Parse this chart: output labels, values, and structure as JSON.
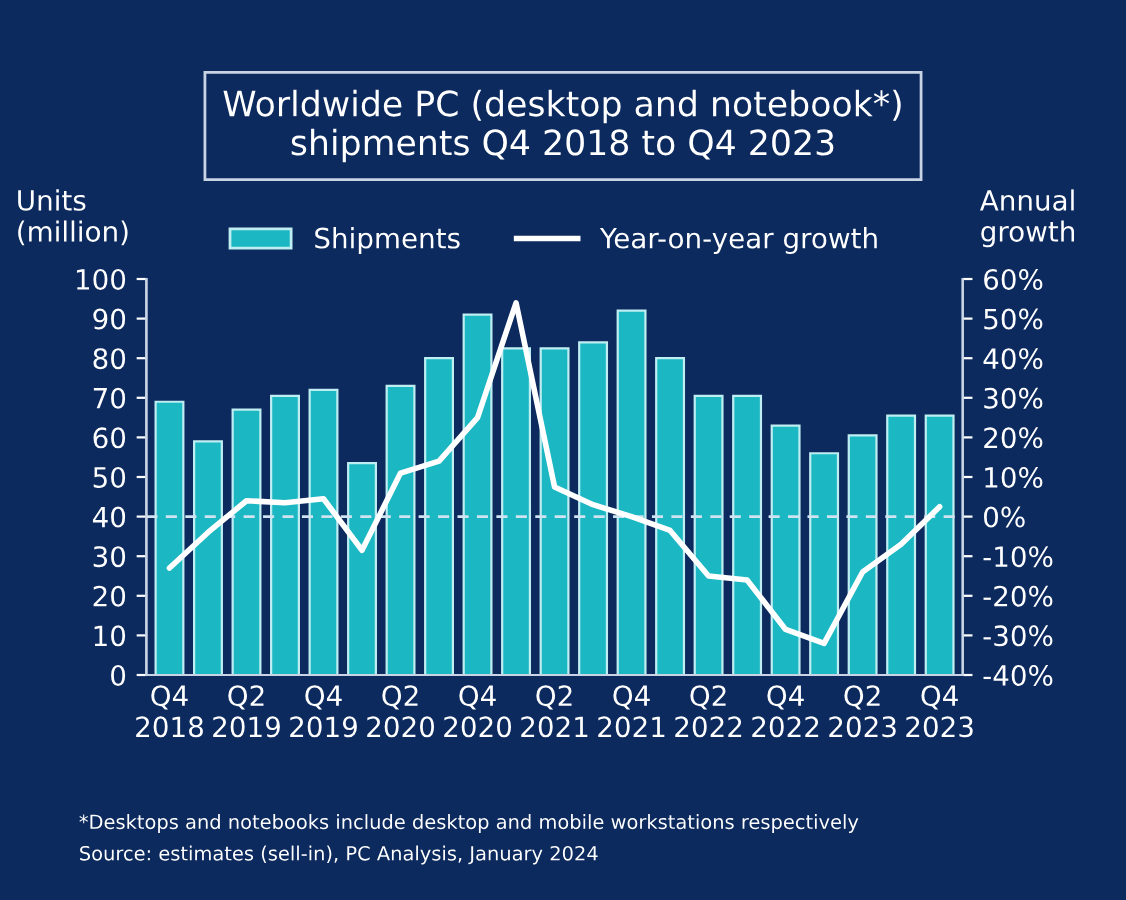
{
  "chart_data": {
    "type": "bar",
    "title": "Worldwide PC (desktop and notebook*)\nshipments Q4 2018 to Q4 2023",
    "categories": [
      "Q4\n2018",
      null,
      "Q2\n2019",
      null,
      "Q4\n2019",
      null,
      "Q2\n2020",
      null,
      "Q4\n2020",
      null,
      "Q2\n2021",
      null,
      "Q4\n2021",
      null,
      "Q2\n2022",
      null,
      "Q4\n2022",
      null,
      "Q2\n2023",
      null,
      "Q4\n2023"
    ],
    "ylabel": "Units\n(million)",
    "y2label": "Annual\ngrowth",
    "series": [
      {
        "name": "Shipments",
        "color": "#1bb7c2",
        "values": [
          69,
          59,
          67,
          70.5,
          72,
          53.5,
          73,
          80,
          91,
          82.5,
          82.5,
          84,
          92,
          80,
          70.5,
          70.5,
          63,
          56,
          60.5,
          65.5,
          65.5
        ]
      },
      {
        "name": "Year-on-year growth",
        "type": "line",
        "axis": "y2",
        "color": "#ffffff",
        "values": [
          -13,
          -4,
          4,
          3.5,
          4.5,
          -8.5,
          11,
          14,
          25,
          54,
          7.5,
          3,
          0,
          -3.5,
          -15,
          -16,
          -28.5,
          -32,
          -14,
          -7,
          2.5
        ]
      }
    ],
    "ylim": [
      0,
      100
    ],
    "yticks": [
      0,
      10,
      20,
      30,
      40,
      50,
      60,
      70,
      80,
      90,
      100
    ],
    "y2lim": [
      -40,
      60
    ],
    "y2ticks": [
      {
        "value": -40,
        "label": "-40%"
      },
      {
        "value": -30,
        "label": "-30%"
      },
      {
        "value": -20,
        "label": "-20%"
      },
      {
        "value": -10,
        "label": "-10%"
      },
      {
        "value": 0,
        "label": "0%"
      },
      {
        "value": 10,
        "label": "10%"
      },
      {
        "value": 20,
        "label": "20%"
      },
      {
        "value": 30,
        "label": "30%"
      },
      {
        "value": 40,
        "label": "40%"
      },
      {
        "value": 50,
        "label": "50%"
      },
      {
        "value": 60,
        "label": "60%"
      }
    ],
    "ref_lines": [
      {
        "axis": "y2",
        "value": 0,
        "color": "#cfe3f0",
        "line_style": "dashed"
      }
    ],
    "legend": "top",
    "grid": false,
    "annotations": [
      "*Desktops and notebooks include desktop and mobile workstations respectively",
      "Source: estimates (sell-in), PC Analysis, January 2024"
    ]
  }
}
